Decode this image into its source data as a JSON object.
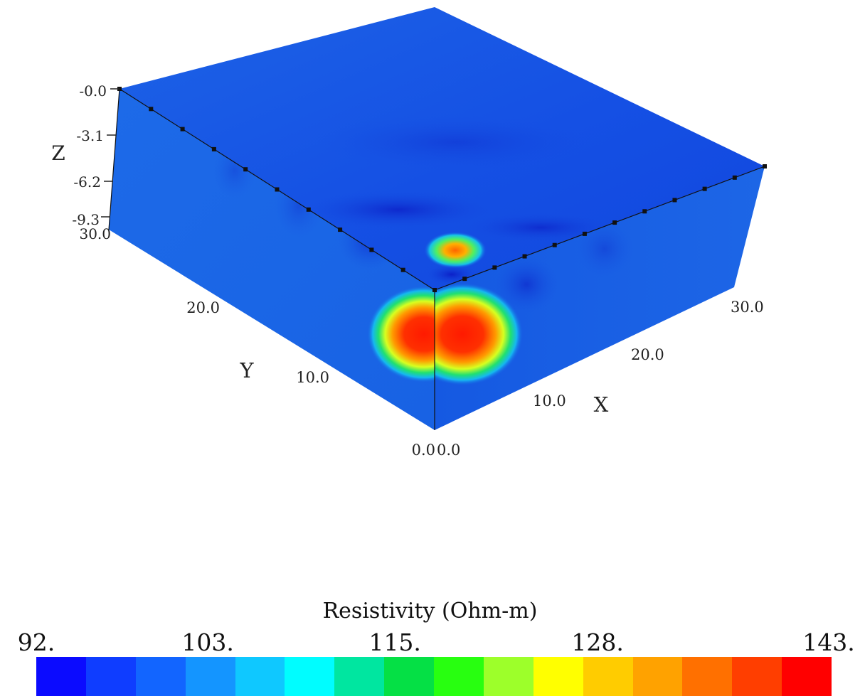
{
  "chart_data": {
    "type": "3d-volume",
    "title": "",
    "axes": {
      "x": {
        "label": "X",
        "ticks": [
          "0.0",
          "10.0",
          "20.0",
          "30.0"
        ],
        "range": [
          0,
          33
        ]
      },
      "y": {
        "label": "Y",
        "ticks": [
          "0.0",
          "10.0",
          "20.0",
          "30.0"
        ],
        "range": [
          0,
          33
        ]
      },
      "z": {
        "label": "Z",
        "ticks": [
          "-0.0",
          "-3.1",
          "-6.2",
          "-9.3"
        ],
        "range": [
          -9.3,
          0
        ]
      }
    },
    "anomaly": {
      "description": "high resistivity body near x=0, y=0",
      "peak_value": 143,
      "center": {
        "x": 3,
        "y": 3,
        "z": -5.5
      }
    },
    "colorbar": {
      "title": "Resistivity (Ohm-m)",
      "tick_labels": [
        "92.",
        "103.",
        "115.",
        "128.",
        "143."
      ],
      "tick_values": [
        92,
        103,
        115,
        128,
        143
      ],
      "min": 92,
      "max": 143,
      "colors": [
        "#0b0bff",
        "#0f3dff",
        "#1265ff",
        "#1495ff",
        "#0fc8ff",
        "#00fdff",
        "#00e6a0",
        "#05e045",
        "#28ff10",
        "#9dff2a",
        "#ffff00",
        "#ffcc00",
        "#ffa200",
        "#ff7000",
        "#ff3e00",
        "#ff0000"
      ]
    },
    "background_color": "#1a55e8"
  }
}
